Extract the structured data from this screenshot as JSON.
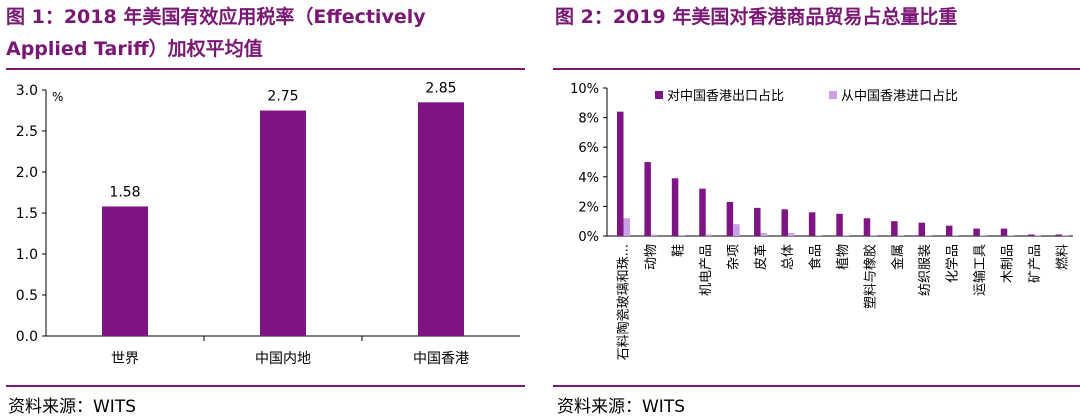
{
  "colors": {
    "title": "#7a1775",
    "primary_bar": "#7f1585",
    "secondary_bar": "#c9a0e8"
  },
  "left": {
    "title_line1": "图 1：2018 年美国有效应用税率（Effectively",
    "title_line2": "Applied Tariff）加权平均值",
    "unit": "%",
    "source": "资料来源：WITS"
  },
  "right": {
    "title": "图 2：2019 年美国对香港商品贸易占总量比重",
    "source": "资料来源：WITS"
  },
  "chart_data": [
    {
      "type": "bar",
      "title": "图 1：2018 年美国有效应用税率（Effectively Applied Tariff）加权平均值",
      "categories": [
        "世界",
        "中国内地",
        "中国香港"
      ],
      "values": [
        1.58,
        2.75,
        2.85
      ],
      "value_labels": [
        "1.58",
        "2.75",
        "2.85"
      ],
      "ylim": [
        0,
        3.0
      ],
      "yticks": [
        "0.0",
        "0.5",
        "1.0",
        "1.5",
        "2.0",
        "2.5",
        "3.0"
      ],
      "ylabel": "%",
      "grid": false,
      "legend": "none"
    },
    {
      "type": "bar",
      "title": "图 2：2019 年美国对香港商品贸易占总量比重",
      "categories": [
        "石料陶瓷玻璃和珠...",
        "动物",
        "鞋",
        "机电产品",
        "杂项",
        "皮革",
        "总体",
        "食品",
        "植物",
        "塑料与橡胶",
        "金属",
        "纺织服装",
        "化学品",
        "运输工具",
        "木制品",
        "矿产品",
        "燃料"
      ],
      "series": [
        {
          "name": "对中国香港出口占比",
          "values": [
            8.4,
            5.0,
            3.9,
            3.2,
            2.3,
            1.9,
            1.8,
            1.6,
            1.5,
            1.2,
            1.0,
            0.9,
            0.7,
            0.5,
            0.5,
            0.1,
            0.1
          ]
        },
        {
          "name": "从中国香港进口占比",
          "values": [
            1.2,
            0.1,
            0.05,
            0.1,
            0.8,
            0.2,
            0.2,
            0.05,
            0.05,
            0.05,
            0.05,
            0.05,
            0.05,
            0.05,
            0.05,
            0.05,
            0.05
          ]
        }
      ],
      "ylim": [
        0,
        10
      ],
      "yticks": [
        "0%",
        "2%",
        "4%",
        "6%",
        "8%",
        "10%"
      ],
      "grid": false,
      "legend": "top"
    }
  ]
}
